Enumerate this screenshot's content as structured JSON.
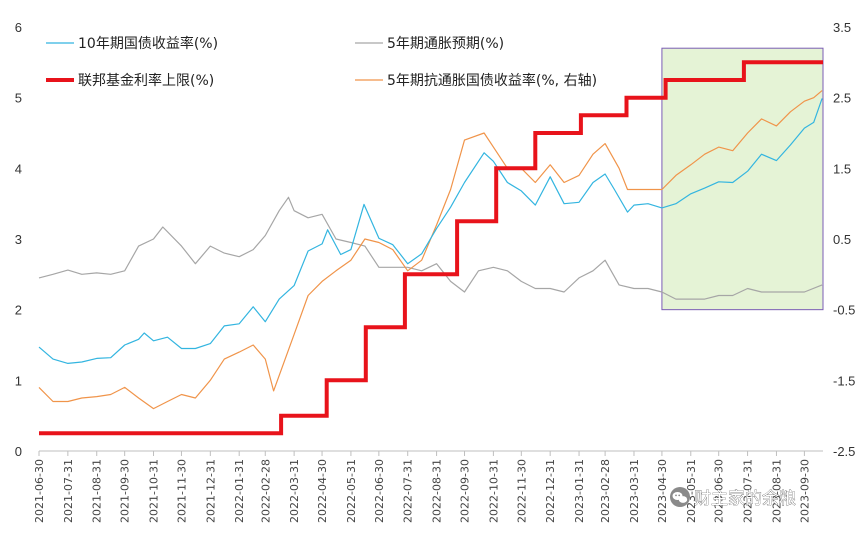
{
  "chart_data": {
    "type": "line",
    "x_ticks": [
      "2021-06-30",
      "2021-07-31",
      "2021-08-31",
      "2021-09-30",
      "2021-10-31",
      "2021-11-30",
      "2021-12-31",
      "2022-01-31",
      "2022-02-28",
      "2022-03-31",
      "2022-04-30",
      "2022-05-31",
      "2022-06-30",
      "2022-07-31",
      "2022-08-31",
      "2022-09-30",
      "2022-10-31",
      "2022-11-30",
      "2022-12-31",
      "2023-01-31",
      "2023-02-28",
      "2023-03-31",
      "2023-04-30",
      "2023-05-31",
      "2023-06-30",
      "2023-07-31",
      "2023-08-31",
      "2023-09-30"
    ],
    "y_left": {
      "min": 0,
      "max": 6,
      "ticks": [
        "0",
        "1",
        "2",
        "3",
        "4",
        "5",
        "6"
      ]
    },
    "y_right": {
      "min": -2.5,
      "max": 3.5,
      "ticks": [
        "-2.5",
        "-1.5",
        "-0.5",
        "0.5",
        "1.5",
        "2.5",
        "3.5"
      ]
    },
    "legend": [
      {
        "name": "10年期国债收益率(%)",
        "color": "#33b5e0",
        "style": "thin"
      },
      {
        "name": "5年期通胀预期(%)",
        "color": "#a6a6a6",
        "style": "thin"
      },
      {
        "name": "联邦基金利率上限(%)",
        "color": "#e8131b",
        "style": "thick"
      },
      {
        "name": "5年期抗通胀国债收益率(%, 右轴)",
        "color": "#f0944a",
        "style": "thin"
      }
    ],
    "highlight": {
      "from": "2023-04-30",
      "to": "2023-10-20",
      "y_from": 2.0,
      "y_to": 5.7,
      "fill": "#e5f3d6",
      "stroke": "#7b5cb5"
    },
    "series": [
      {
        "name": "10年期国债收益率(%)",
        "axis": "left",
        "color": "#33b5e0",
        "points": [
          [
            "2021-06-30",
            1.47
          ],
          [
            "2021-07-15",
            1.3
          ],
          [
            "2021-07-31",
            1.24
          ],
          [
            "2021-08-15",
            1.26
          ],
          [
            "2021-08-31",
            1.31
          ],
          [
            "2021-09-15",
            1.32
          ],
          [
            "2021-09-30",
            1.5
          ],
          [
            "2021-10-15",
            1.58
          ],
          [
            "2021-10-21",
            1.67
          ],
          [
            "2021-10-31",
            1.56
          ],
          [
            "2021-11-15",
            1.61
          ],
          [
            "2021-11-30",
            1.45
          ],
          [
            "2021-12-15",
            1.45
          ],
          [
            "2021-12-31",
            1.52
          ],
          [
            "2022-01-15",
            1.77
          ],
          [
            "2022-01-31",
            1.8
          ],
          [
            "2022-02-15",
            2.04
          ],
          [
            "2022-02-28",
            1.83
          ],
          [
            "2022-03-15",
            2.15
          ],
          [
            "2022-03-31",
            2.34
          ],
          [
            "2022-04-15",
            2.83
          ],
          [
            "2022-04-30",
            2.93
          ],
          [
            "2022-05-06",
            3.13
          ],
          [
            "2022-05-20",
            2.78
          ],
          [
            "2022-05-31",
            2.85
          ],
          [
            "2022-06-14",
            3.49
          ],
          [
            "2022-06-30",
            3.01
          ],
          [
            "2022-07-15",
            2.92
          ],
          [
            "2022-07-31",
            2.65
          ],
          [
            "2022-08-15",
            2.79
          ],
          [
            "2022-08-31",
            3.15
          ],
          [
            "2022-09-15",
            3.45
          ],
          [
            "2022-09-30",
            3.8
          ],
          [
            "2022-10-21",
            4.22
          ],
          [
            "2022-10-31",
            4.1
          ],
          [
            "2022-11-15",
            3.8
          ],
          [
            "2022-11-30",
            3.68
          ],
          [
            "2022-12-15",
            3.48
          ],
          [
            "2022-12-31",
            3.88
          ],
          [
            "2023-01-15",
            3.5
          ],
          [
            "2023-01-31",
            3.52
          ],
          [
            "2023-02-15",
            3.8
          ],
          [
            "2023-02-28",
            3.92
          ],
          [
            "2023-03-10",
            3.7
          ],
          [
            "2023-03-24",
            3.38
          ],
          [
            "2023-03-31",
            3.48
          ],
          [
            "2023-04-15",
            3.5
          ],
          [
            "2023-04-30",
            3.44
          ],
          [
            "2023-05-15",
            3.5
          ],
          [
            "2023-05-31",
            3.64
          ],
          [
            "2023-06-15",
            3.72
          ],
          [
            "2023-06-30",
            3.81
          ],
          [
            "2023-07-15",
            3.8
          ],
          [
            "2023-07-31",
            3.96
          ],
          [
            "2023-08-15",
            4.2
          ],
          [
            "2023-08-31",
            4.11
          ],
          [
            "2023-09-15",
            4.33
          ],
          [
            "2023-09-30",
            4.57
          ],
          [
            "2023-10-10",
            4.65
          ],
          [
            "2023-10-19",
            4.99
          ]
        ]
      },
      {
        "name": "5年期通胀预期(%)",
        "axis": "left",
        "color": "#a6a6a6",
        "points": [
          [
            "2021-06-30",
            2.45
          ],
          [
            "2021-07-15",
            2.5
          ],
          [
            "2021-07-31",
            2.56
          ],
          [
            "2021-08-15",
            2.5
          ],
          [
            "2021-08-31",
            2.52
          ],
          [
            "2021-09-15",
            2.5
          ],
          [
            "2021-09-30",
            2.55
          ],
          [
            "2021-10-15",
            2.9
          ],
          [
            "2021-10-31",
            3.0
          ],
          [
            "2021-11-10",
            3.17
          ],
          [
            "2021-11-30",
            2.9
          ],
          [
            "2021-12-15",
            2.65
          ],
          [
            "2021-12-31",
            2.9
          ],
          [
            "2022-01-15",
            2.8
          ],
          [
            "2022-01-31",
            2.75
          ],
          [
            "2022-02-15",
            2.85
          ],
          [
            "2022-02-28",
            3.05
          ],
          [
            "2022-03-15",
            3.4
          ],
          [
            "2022-03-25",
            3.59
          ],
          [
            "2022-03-31",
            3.4
          ],
          [
            "2022-04-15",
            3.3
          ],
          [
            "2022-04-30",
            3.35
          ],
          [
            "2022-05-15",
            3.0
          ],
          [
            "2022-05-31",
            2.95
          ],
          [
            "2022-06-15",
            2.9
          ],
          [
            "2022-06-30",
            2.6
          ],
          [
            "2022-07-15",
            2.6
          ],
          [
            "2022-07-31",
            2.6
          ],
          [
            "2022-08-15",
            2.55
          ],
          [
            "2022-08-31",
            2.65
          ],
          [
            "2022-09-15",
            2.4
          ],
          [
            "2022-09-30",
            2.25
          ],
          [
            "2022-10-15",
            2.55
          ],
          [
            "2022-10-31",
            2.6
          ],
          [
            "2022-11-15",
            2.55
          ],
          [
            "2022-11-30",
            2.4
          ],
          [
            "2022-12-15",
            2.3
          ],
          [
            "2022-12-31",
            2.3
          ],
          [
            "2023-01-15",
            2.25
          ],
          [
            "2023-01-31",
            2.45
          ],
          [
            "2023-02-15",
            2.55
          ],
          [
            "2023-02-28",
            2.7
          ],
          [
            "2023-03-15",
            2.35
          ],
          [
            "2023-03-31",
            2.3
          ],
          [
            "2023-04-15",
            2.3
          ],
          [
            "2023-04-30",
            2.25
          ],
          [
            "2023-05-15",
            2.15
          ],
          [
            "2023-05-31",
            2.15
          ],
          [
            "2023-06-15",
            2.15
          ],
          [
            "2023-06-30",
            2.2
          ],
          [
            "2023-07-15",
            2.2
          ],
          [
            "2023-07-31",
            2.3
          ],
          [
            "2023-08-15",
            2.25
          ],
          [
            "2023-08-31",
            2.25
          ],
          [
            "2023-09-15",
            2.25
          ],
          [
            "2023-09-30",
            2.25
          ],
          [
            "2023-10-19",
            2.35
          ]
        ]
      },
      {
        "name": "联邦基金利率上限(%)",
        "axis": "left",
        "color": "#e8131b",
        "step": true,
        "points": [
          [
            "2021-06-30",
            0.25
          ],
          [
            "2022-03-17",
            0.5
          ],
          [
            "2022-05-05",
            1.0
          ],
          [
            "2022-06-16",
            1.75
          ],
          [
            "2022-07-28",
            2.5
          ],
          [
            "2022-09-22",
            3.25
          ],
          [
            "2022-11-03",
            4.0
          ],
          [
            "2022-12-15",
            4.5
          ],
          [
            "2023-02-02",
            4.75
          ],
          [
            "2023-03-23",
            5.0
          ],
          [
            "2023-05-04",
            5.25
          ],
          [
            "2023-07-27",
            5.5
          ],
          [
            "2023-10-20",
            5.5
          ]
        ]
      },
      {
        "name": "5年期抗通胀国债收益率(%, 右轴)",
        "axis": "right",
        "color": "#f0944a",
        "points": [
          [
            "2021-06-30",
            -1.6
          ],
          [
            "2021-07-15",
            -1.8
          ],
          [
            "2021-07-31",
            -1.8
          ],
          [
            "2021-08-15",
            -1.75
          ],
          [
            "2021-08-31",
            -1.73
          ],
          [
            "2021-09-15",
            -1.7
          ],
          [
            "2021-09-30",
            -1.6
          ],
          [
            "2021-10-15",
            -1.75
          ],
          [
            "2021-10-31",
            -1.9
          ],
          [
            "2021-11-15",
            -1.8
          ],
          [
            "2021-11-30",
            -1.7
          ],
          [
            "2021-12-15",
            -1.75
          ],
          [
            "2021-12-31",
            -1.5
          ],
          [
            "2022-01-15",
            -1.2
          ],
          [
            "2022-01-31",
            -1.1
          ],
          [
            "2022-02-15",
            -1.0
          ],
          [
            "2022-02-28",
            -1.2
          ],
          [
            "2022-03-09",
            -1.65
          ],
          [
            "2022-03-31",
            -0.85
          ],
          [
            "2022-04-15",
            -0.3
          ],
          [
            "2022-04-30",
            -0.1
          ],
          [
            "2022-05-15",
            0.05
          ],
          [
            "2022-05-31",
            0.2
          ],
          [
            "2022-06-15",
            0.5
          ],
          [
            "2022-06-30",
            0.45
          ],
          [
            "2022-07-15",
            0.35
          ],
          [
            "2022-07-31",
            0.05
          ],
          [
            "2022-08-15",
            0.2
          ],
          [
            "2022-08-31",
            0.7
          ],
          [
            "2022-09-15",
            1.2
          ],
          [
            "2022-09-30",
            1.9
          ],
          [
            "2022-10-21",
            2.0
          ],
          [
            "2022-10-31",
            1.8
          ],
          [
            "2022-11-15",
            1.5
          ],
          [
            "2022-11-30",
            1.5
          ],
          [
            "2022-12-15",
            1.3
          ],
          [
            "2022-12-31",
            1.55
          ],
          [
            "2023-01-15",
            1.3
          ],
          [
            "2023-01-31",
            1.4
          ],
          [
            "2023-02-15",
            1.7
          ],
          [
            "2023-02-28",
            1.85
          ],
          [
            "2023-03-15",
            1.5
          ],
          [
            "2023-03-24",
            1.2
          ],
          [
            "2023-03-31",
            1.2
          ],
          [
            "2023-04-15",
            1.2
          ],
          [
            "2023-04-30",
            1.2
          ],
          [
            "2023-05-15",
            1.4
          ],
          [
            "2023-05-31",
            1.55
          ],
          [
            "2023-06-15",
            1.7
          ],
          [
            "2023-06-30",
            1.8
          ],
          [
            "2023-07-15",
            1.75
          ],
          [
            "2023-07-31",
            2.0
          ],
          [
            "2023-08-15",
            2.2
          ],
          [
            "2023-08-31",
            2.1
          ],
          [
            "2023-09-15",
            2.3
          ],
          [
            "2023-09-30",
            2.45
          ],
          [
            "2023-10-10",
            2.5
          ],
          [
            "2023-10-19",
            2.6
          ]
        ]
      }
    ]
  },
  "watermark": {
    "text": "财主家的余粮",
    "icon": "wechat-icon"
  }
}
